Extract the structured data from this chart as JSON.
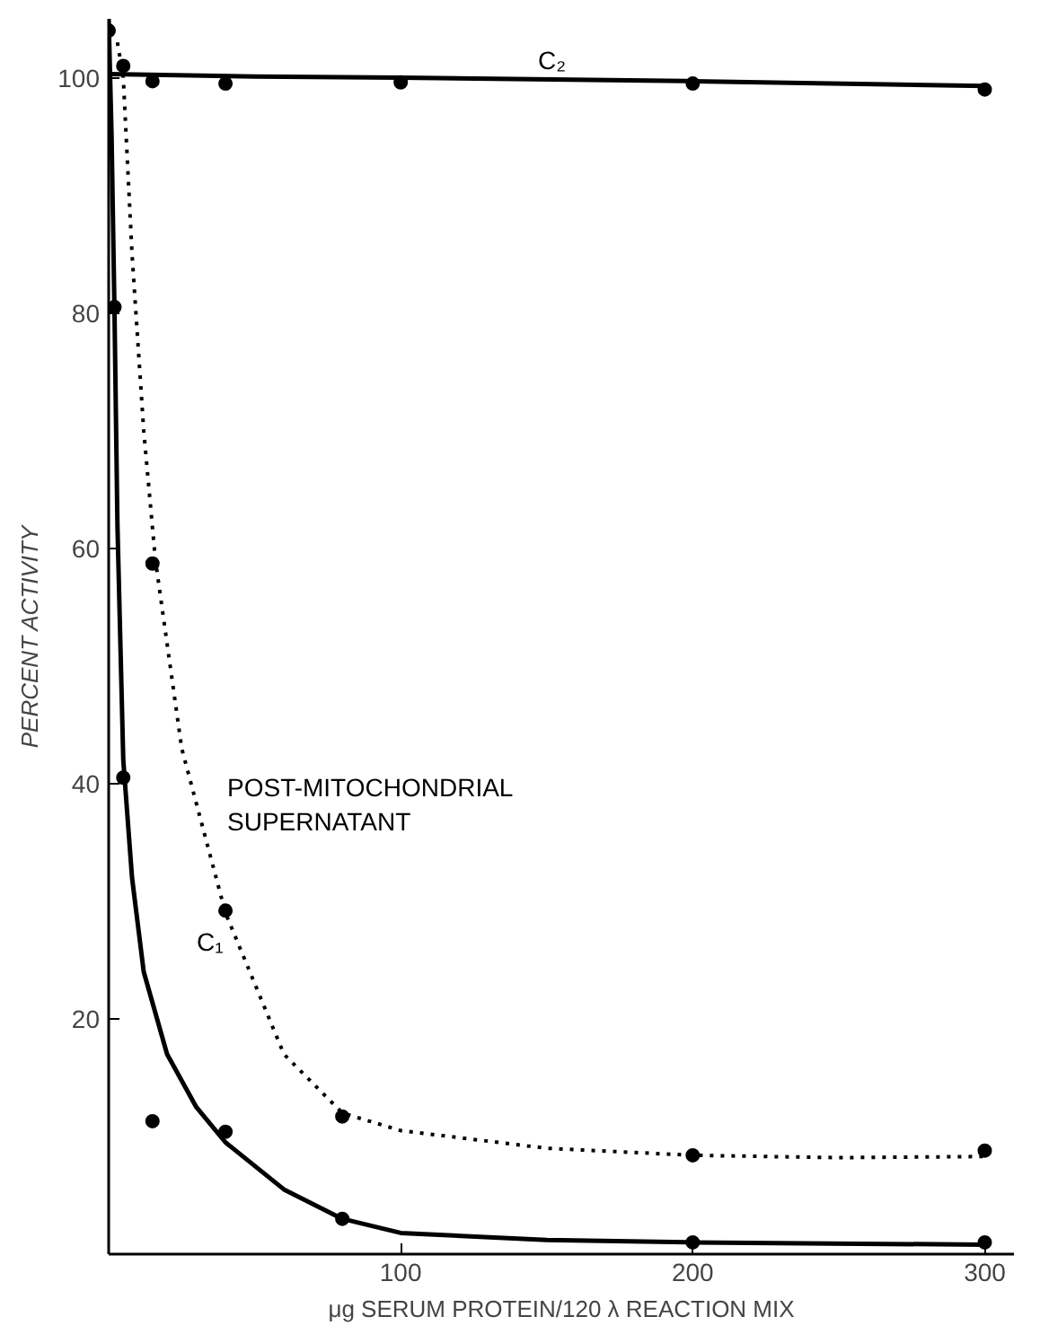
{
  "chart_data": {
    "type": "line",
    "xlabel": "μg SERUM PROTEIN/120 λ REACTION MIX",
    "ylabel": "PERCENT ACTIVITY",
    "xlim": [
      0,
      310
    ],
    "ylim": [
      0,
      105
    ],
    "xticks": [
      100,
      200,
      300
    ],
    "yticks": [
      20,
      40,
      60,
      80,
      100
    ],
    "grid": false,
    "series": [
      {
        "color": "#000000",
        "line_style": "solid",
        "x": [
          0,
          50,
          100,
          200,
          300
        ],
        "values": [
          100.3,
          100.1,
          100,
          99.7,
          99.3
        ]
      },
      {
        "color": "#000000",
        "line_style": "solid",
        "x": [
          0,
          1,
          2,
          3,
          5,
          8,
          12,
          20,
          30,
          40,
          60,
          80,
          100,
          150,
          200,
          300
        ],
        "values": [
          105,
          95,
          80,
          62,
          42,
          32,
          24,
          17,
          12.5,
          9.5,
          5.5,
          3,
          1.8,
          1.2,
          1,
          0.8
        ]
      },
      {
        "color": "#000000",
        "line_style": "dotted",
        "x": [
          3,
          5,
          8,
          12,
          16,
          25,
          40,
          60,
          80,
          100,
          150,
          200,
          250,
          300
        ],
        "values": [
          103,
          100,
          85,
          70,
          59,
          43,
          29,
          17,
          12,
          10.5,
          9,
          8.4,
          8.2,
          8.3
        ]
      },
      {
        "type": "scatter",
        "color": "#000000",
        "marker": "circle",
        "x": [
          15,
          40,
          100,
          200,
          300
        ],
        "values": [
          99.7,
          99.5,
          99.6,
          99.5,
          99
        ]
      },
      {
        "type": "scatter",
        "color": "#000000",
        "marker": "circle",
        "x": [
          0,
          2,
          5,
          15,
          40,
          80,
          200,
          300
        ],
        "values": [
          104,
          80.5,
          40.5,
          11.3,
          10.4,
          3,
          1,
          1
        ]
      },
      {
        "type": "scatter",
        "color": "#000000",
        "marker": "circle",
        "x": [
          5,
          15,
          40,
          80,
          200,
          300
        ],
        "values": [
          101,
          58.7,
          29.2,
          11.7,
          8.4,
          8.8
        ]
      }
    ],
    "annotations": [
      "C₂",
      "C₁",
      "POST-MITOCHONDRIAL\nSUPERNATANT"
    ]
  }
}
